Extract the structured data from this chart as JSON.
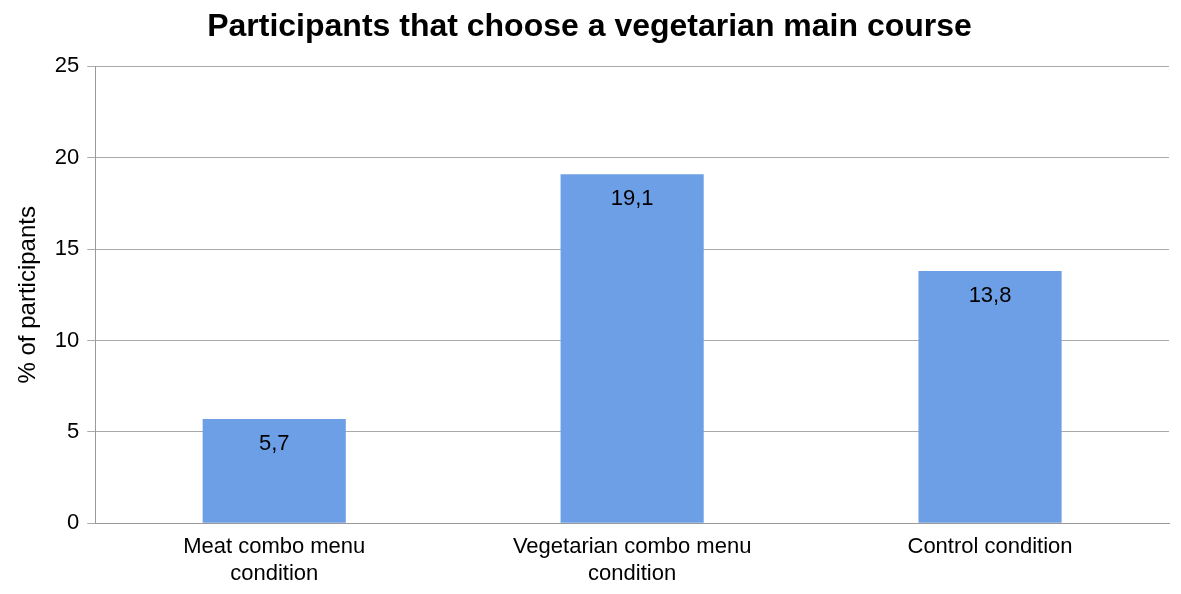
{
  "chart_data": {
    "type": "bar",
    "title": "Participants that choose a vegetarian main course",
    "ylabel": "% of participants",
    "categories": [
      "Meat combo menu condition",
      "Vegetarian combo menu condition",
      "Control condition"
    ],
    "values": [
      5.7,
      19.1,
      13.8
    ],
    "value_labels": [
      "5,7",
      "19,1",
      "13,8"
    ],
    "color": "#6d9fe6",
    "ylim": [
      0,
      25
    ],
    "yticks": [
      0,
      5,
      10,
      15,
      20,
      25
    ],
    "grid": "y",
    "legend": false
  }
}
